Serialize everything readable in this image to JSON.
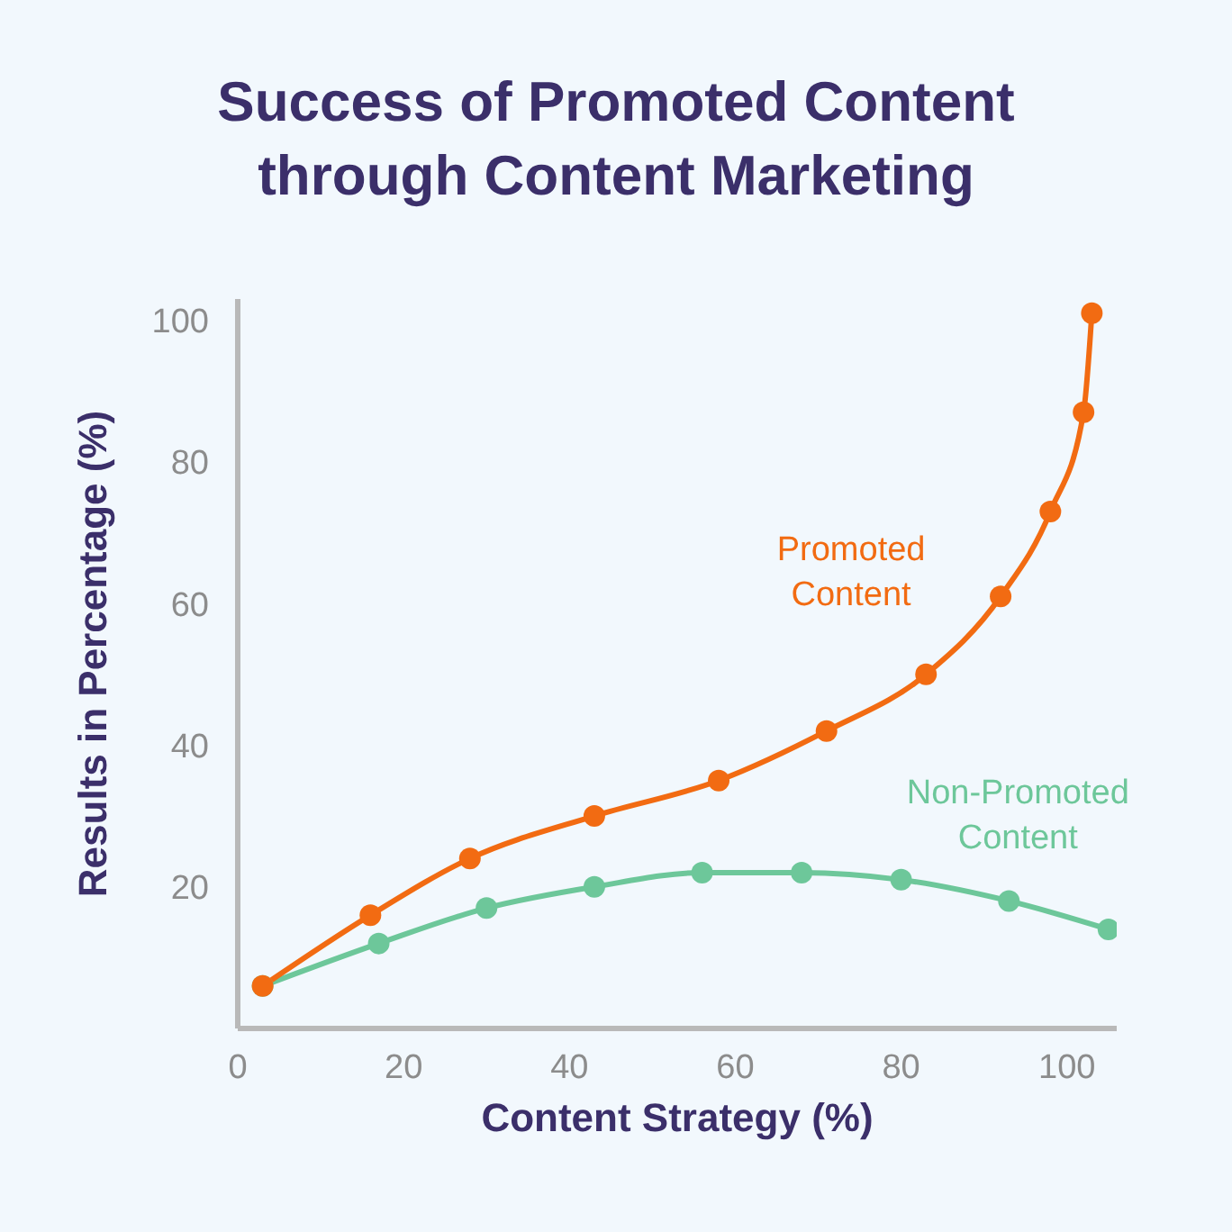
{
  "chart_data": {
    "type": "line",
    "title": "Success of Promoted Content through Content Marketing",
    "xlabel": "Content Strategy (%)",
    "ylabel": "Results in Percentage (%)",
    "xlim": [
      0,
      106
    ],
    "ylim": [
      0,
      103
    ],
    "xticks": [
      0,
      20,
      40,
      60,
      80,
      100
    ],
    "yticks": [
      20,
      40,
      60,
      80,
      100
    ],
    "marker": "circle",
    "series": [
      {
        "name": "Promoted Content",
        "color": "#f26b12",
        "x": [
          3,
          16,
          28,
          43,
          58,
          71,
          83,
          92,
          98,
          102,
          103
        ],
        "values": [
          6,
          16,
          24,
          30,
          35,
          42,
          50,
          61,
          73,
          87,
          101
        ]
      },
      {
        "name": "Non-Promoted Content",
        "color": "#6dc79a",
        "x": [
          3,
          17,
          30,
          43,
          56,
          68,
          80,
          93,
          105
        ],
        "values": [
          6,
          12,
          17,
          20,
          22,
          22,
          21,
          18,
          14
        ]
      }
    ]
  }
}
